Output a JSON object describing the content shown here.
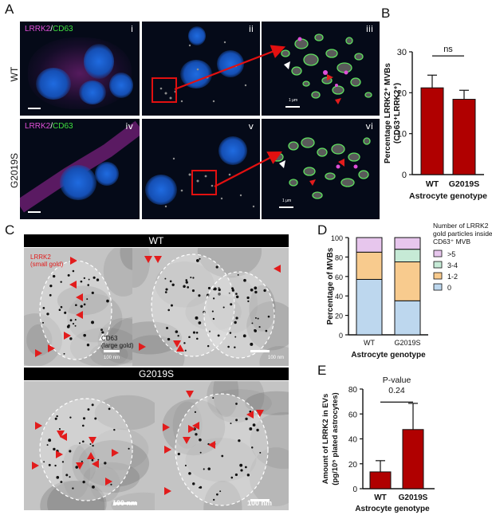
{
  "panels": {
    "A": "A",
    "B": "B",
    "C": "C",
    "D": "D",
    "E": "E"
  },
  "panel_a": {
    "row_labels": [
      "WT",
      "G2019S"
    ],
    "marker_label": {
      "lrrk2": "LRRK2",
      "sep": "/",
      "cd63": "CD63"
    },
    "roman": [
      "i",
      "ii",
      "iii",
      "iv",
      "v",
      "vi"
    ],
    "inset_scale": "1 μm"
  },
  "panel_c": {
    "headers": [
      "WT",
      "G2019S"
    ],
    "lrrk2_label_1": "LRRK2",
    "lrrk2_label_2": "(small gold)",
    "cd63_label_1": "CD63",
    "cd63_label_2": "(large gold)",
    "scale_small": "100 nm",
    "scale_large": "100 nm"
  },
  "chart_data": [
    {
      "panel": "B",
      "type": "bar",
      "categories": [
        "WT",
        "G2019S"
      ],
      "values": [
        21.2,
        18.4
      ],
      "errors": [
        3.1,
        2.2
      ],
      "ylabel_line1": "Percentage LRRK2⁺ MVBs",
      "ylabel_line2": "(CD63⁺LRRK2⁺)",
      "xlabel": "Astrocyte genotype",
      "ylim": [
        0,
        30
      ],
      "yticks": [
        "0",
        "10",
        "20",
        "30"
      ],
      "significance": "ns",
      "bar_color": "#b00000"
    },
    {
      "panel": "D",
      "type": "bar",
      "stacked": true,
      "categories": [
        "WT",
        "G2019S"
      ],
      "series": [
        {
          "name": "0",
          "values": [
            57,
            35
          ],
          "color": "#bdd7ee"
        },
        {
          "name": "1-2",
          "values": [
            28,
            40
          ],
          "color": "#f8cb8e"
        },
        {
          "name": "3-4",
          "values": [
            0,
            13
          ],
          "color": "#c6ead6"
        },
        {
          "name": ">5",
          "values": [
            15,
            12
          ],
          "color": "#e7c6ed"
        }
      ],
      "ylabel": "Percentage of MVBs",
      "xlabel": "Astrocyte genotype",
      "ylim": [
        0,
        100
      ],
      "yticks": [
        "0",
        "20",
        "40",
        "60",
        "80",
        "100"
      ],
      "legend_title_1": "Number of LRRK2",
      "legend_title_2": "gold particles inside",
      "legend_title_3": "CD63⁺ MVB",
      "legend": ">5|3-4|1-2|0"
    },
    {
      "panel": "E",
      "type": "bar",
      "categories": [
        "WT",
        "G2019S"
      ],
      "values": [
        13.5,
        47.5
      ],
      "errors": [
        9,
        21
      ],
      "ylabel_line1": "Amount of LRRK2 in EVs",
      "ylabel_line2": "(pg/10⁵ plated astrocytes)",
      "xlabel": "Astrocyte genotype",
      "ylim": [
        0,
        80
      ],
      "yticks": [
        "0",
        "20",
        "40",
        "60",
        "80"
      ],
      "p_label": "P-value",
      "p_value": "0.24",
      "bar_color": "#b00000"
    }
  ]
}
